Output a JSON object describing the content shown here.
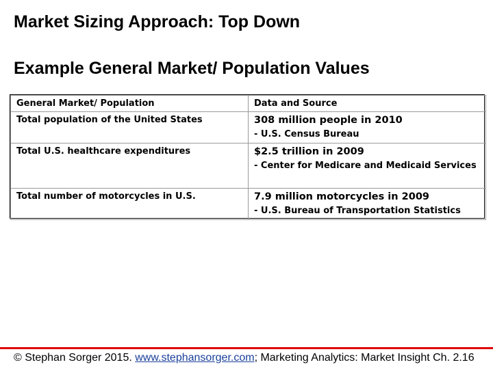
{
  "slide": {
    "title": "Market Sizing Approach: Top Down",
    "subtitle": "Example General Market/ Population Values"
  },
  "table": {
    "headers": [
      "General Market/ Population",
      "Data and Source"
    ],
    "rows": [
      {
        "metric": "Total population of the United States",
        "value": "308 million people in 2010",
        "source": "-  U.S. Census Bureau"
      },
      {
        "metric": "Total U.S. healthcare expenditures",
        "value": "$2.5 trillion in 2009",
        "source": "- Center for Medicare and Medicaid Services"
      },
      {
        "metric": "Total number of motorcycles in U.S.",
        "value": "7.9 million motorcycles in 2009",
        "source": "- U.S. Bureau of Transportation Statistics"
      }
    ]
  },
  "footer": {
    "prefix": "© Stephan Sorger 2015. ",
    "link": "www.stephansorger.com",
    "suffix": "; Marketing Analytics: Market Insight Ch. 2.16",
    "accent_color": "#e00000",
    "link_color": "#1a3f9c"
  }
}
